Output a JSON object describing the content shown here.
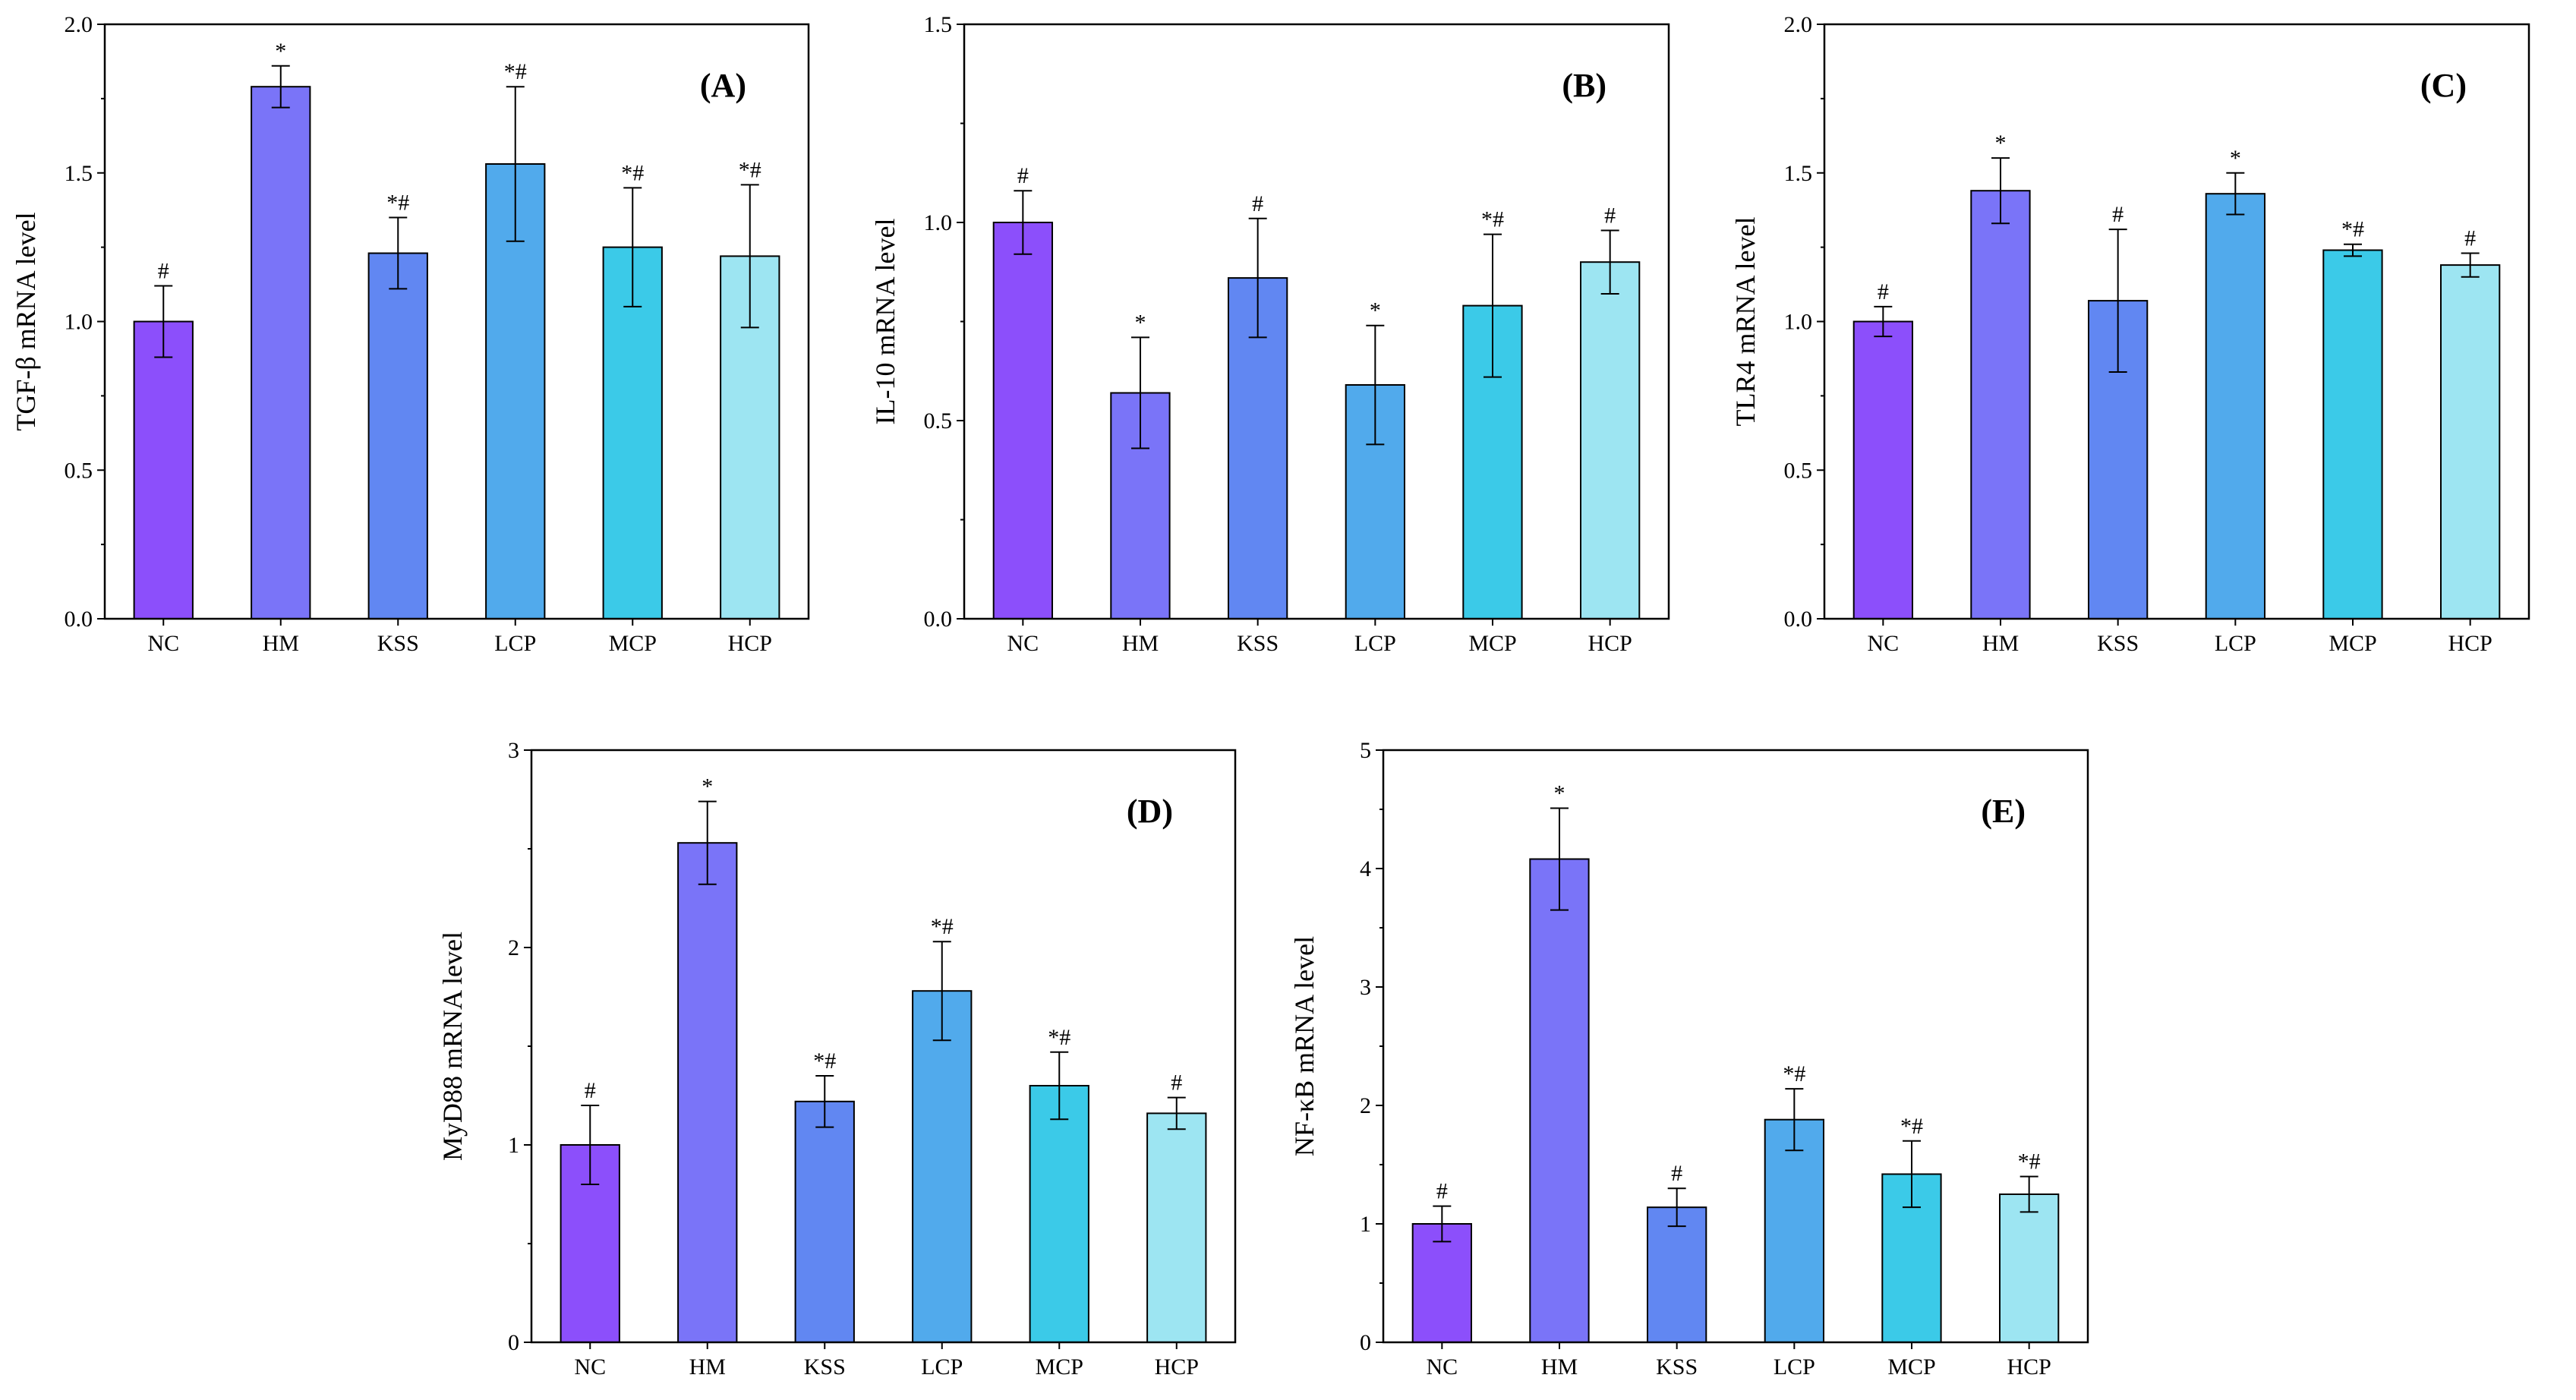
{
  "chart_data": [
    {
      "panel": "(A)",
      "type": "bar",
      "ylabel": "TGF-β mRNA  level",
      "ylim": [
        0,
        2.0
      ],
      "yticks": [
        "0.0",
        "0.5",
        "1.0",
        "1.5",
        "2.0"
      ],
      "categories": [
        "NC",
        "HM",
        "KSS",
        "LCP",
        "MCP",
        "HCP"
      ],
      "values": [
        1.0,
        1.79,
        1.23,
        1.53,
        1.25,
        1.22
      ],
      "errors": [
        0.12,
        0.07,
        0.12,
        0.26,
        0.2,
        0.24
      ],
      "significance": [
        "#",
        "*",
        "*#",
        "*#",
        "*#",
        "*#"
      ]
    },
    {
      "panel": "(B)",
      "type": "bar",
      "ylabel": "IL-10 mRNA  level",
      "ylim": [
        0,
        1.5
      ],
      "yticks": [
        "0.0",
        "0.5",
        "1.0",
        "1.5"
      ],
      "categories": [
        "NC",
        "HM",
        "KSS",
        "LCP",
        "MCP",
        "HCP"
      ],
      "values": [
        1.0,
        0.57,
        0.86,
        0.59,
        0.79,
        0.9
      ],
      "errors": [
        0.08,
        0.14,
        0.15,
        0.15,
        0.18,
        0.08
      ],
      "significance": [
        "#",
        "*",
        "#",
        "*",
        "*#",
        "#"
      ]
    },
    {
      "panel": "(C)",
      "type": "bar",
      "ylabel": "TLR4 mRNA  level",
      "ylim": [
        0,
        2.0
      ],
      "yticks": [
        "0.0",
        "0.5",
        "1.0",
        "1.5",
        "2.0"
      ],
      "categories": [
        "NC",
        "HM",
        "KSS",
        "LCP",
        "MCP",
        "HCP"
      ],
      "values": [
        1.0,
        1.44,
        1.07,
        1.43,
        1.24,
        1.19
      ],
      "errors": [
        0.05,
        0.11,
        0.24,
        0.07,
        0.02,
        0.04
      ],
      "significance": [
        "#",
        "*",
        "#",
        "*",
        "*#",
        "#"
      ]
    },
    {
      "panel": "(D)",
      "type": "bar",
      "ylabel": "MyD88 mRNA  level",
      "ylim": [
        0,
        3
      ],
      "yticks": [
        "0",
        "1",
        "2",
        "3"
      ],
      "categories": [
        "NC",
        "HM",
        "KSS",
        "LCP",
        "MCP",
        "HCP"
      ],
      "values": [
        1.0,
        2.53,
        1.22,
        1.78,
        1.3,
        1.16
      ],
      "errors": [
        0.2,
        0.21,
        0.13,
        0.25,
        0.17,
        0.08
      ],
      "significance": [
        "#",
        "*",
        "*#",
        "*#",
        "*#",
        "#"
      ]
    },
    {
      "panel": "(E)",
      "type": "bar",
      "ylabel": "NF-κB mRNA  level",
      "ylim": [
        0,
        5
      ],
      "yticks": [
        "0",
        "1",
        "2",
        "3",
        "4",
        "5"
      ],
      "categories": [
        "NC",
        "HM",
        "KSS",
        "LCP",
        "MCP",
        "HCP"
      ],
      "values": [
        1.0,
        4.08,
        1.14,
        1.88,
        1.42,
        1.25
      ],
      "errors": [
        0.15,
        0.43,
        0.16,
        0.26,
        0.28,
        0.15
      ],
      "significance": [
        "#",
        "*",
        "#",
        "*#",
        "*#",
        "*#"
      ]
    }
  ],
  "bar_colors": [
    "#8c4ffb",
    "#7a74f8",
    "#6187f2",
    "#51aaec",
    "#3bcae8",
    "#9de5f2"
  ]
}
